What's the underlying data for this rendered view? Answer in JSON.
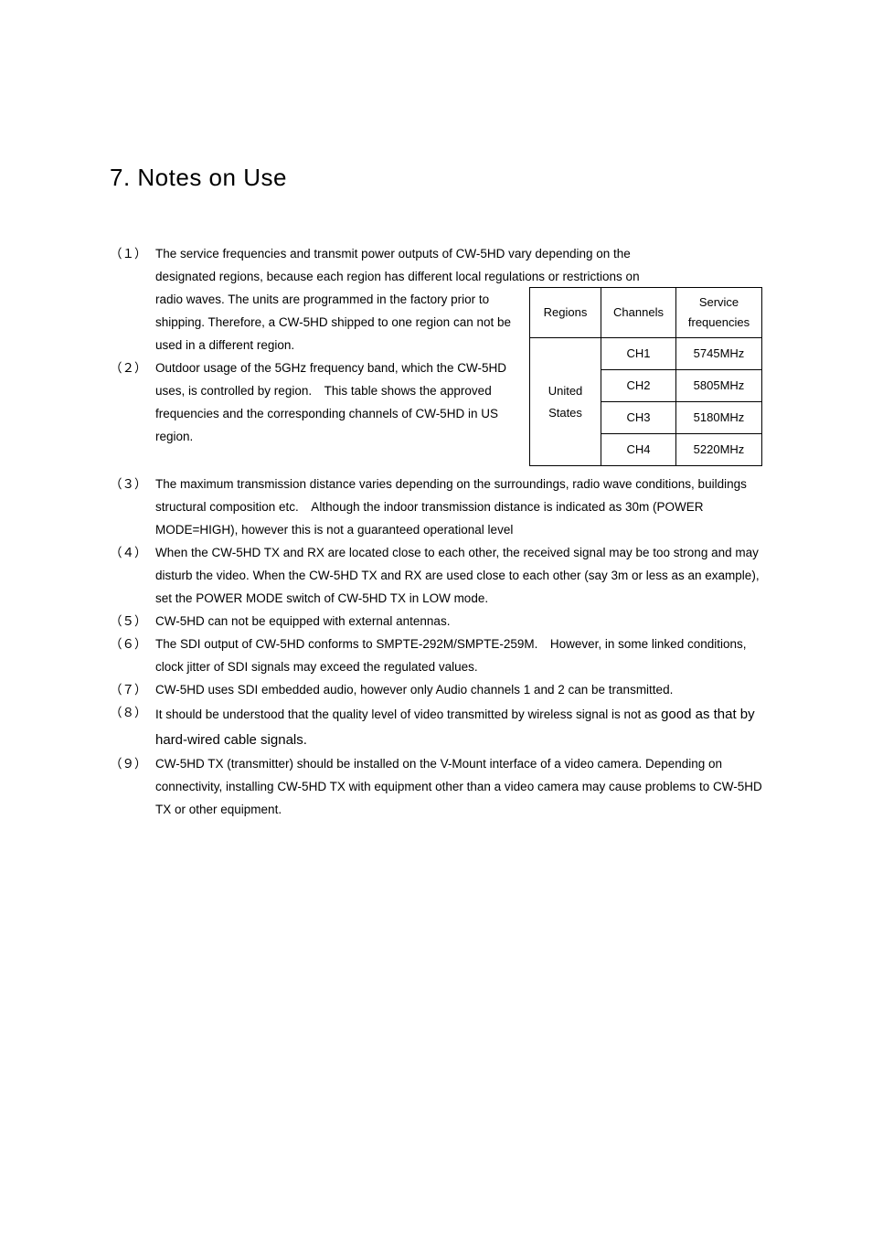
{
  "title": "7. Notes on Use",
  "table": {
    "headers": {
      "regions": "Regions",
      "channels": "Channels",
      "service": "Service frequencies"
    },
    "region": "United States",
    "rows": [
      {
        "channel": "CH1",
        "frequency": "5745MHz"
      },
      {
        "channel": "CH2",
        "frequency": "5805MHz"
      },
      {
        "channel": "CH3",
        "frequency": "5180MHz"
      },
      {
        "channel": "CH4",
        "frequency": "5220MHz"
      }
    ]
  },
  "notes": {
    "n1": {
      "marker": "（１）",
      "line1": "The service frequencies and transmit power outputs of CW-5HD vary depending on the",
      "line2": "designated regions, because each region has different local regulations or restrictions on",
      "line3": "radio waves. The units are programmed in the factory prior to shipping. Therefore, a CW-5HD shipped to one region can not be used in a different region."
    },
    "n2": {
      "marker": "（２）",
      "line1": "Outdoor usage of the 5GHz frequency band, which the CW-5HD uses, is controlled by region.　This table shows the approved",
      "line2": "frequencies and the corresponding channels of CW-5HD in US region."
    },
    "n3": {
      "marker": "（３）",
      "text": "The maximum transmission distance varies depending on the surroundings, radio wave conditions, buildings structural composition etc.　Although the indoor transmission distance is indicated as 30m (POWER MODE=HIGH), however this is not a guaranteed operational level"
    },
    "n4": {
      "marker": "（４）",
      "text": "When the CW-5HD TX and RX are located close to each other, the received signal may be too strong and may disturb the video. When the CW-5HD TX and RX are used close to each other (say 3m or less as an example), set the POWER MODE switch of CW-5HD TX in LOW mode."
    },
    "n5": {
      "marker": "（５）",
      "text": "CW-5HD can not be equipped with external antennas."
    },
    "n6": {
      "marker": "（６）",
      "text": "The SDI output of CW-5HD conforms to SMPTE-292M/SMPTE-259M.　However, in some linked conditions, clock jitter of SDI signals may exceed the regulated values."
    },
    "n7": {
      "marker": "（７）",
      "text": "CW-5HD uses SDI embedded audio, however only Audio channels 1 and 2 can be transmitted."
    },
    "n8": {
      "marker": "（８）",
      "text_a": "It should be understood that the quality level of video transmitted by wireless signal is not as ",
      "text_b": "good as that by hard-wired cable signals."
    },
    "n9": {
      "marker": "（９）",
      "text": "CW-5HD TX (transmitter) should be installed on the V-Mount interface of a video camera. Depending on connectivity, installing CW-5HD TX with equipment other than a video camera may cause problems to CW-5HD TX or other equipment."
    }
  },
  "colors": {
    "text": "#000000",
    "background": "#ffffff",
    "border": "#000000"
  },
  "typography": {
    "title_fontsize": 26,
    "body_fontsize": 13.5,
    "table_fontsize": 13,
    "font_family": "Verdana, Arial, sans-serif"
  }
}
